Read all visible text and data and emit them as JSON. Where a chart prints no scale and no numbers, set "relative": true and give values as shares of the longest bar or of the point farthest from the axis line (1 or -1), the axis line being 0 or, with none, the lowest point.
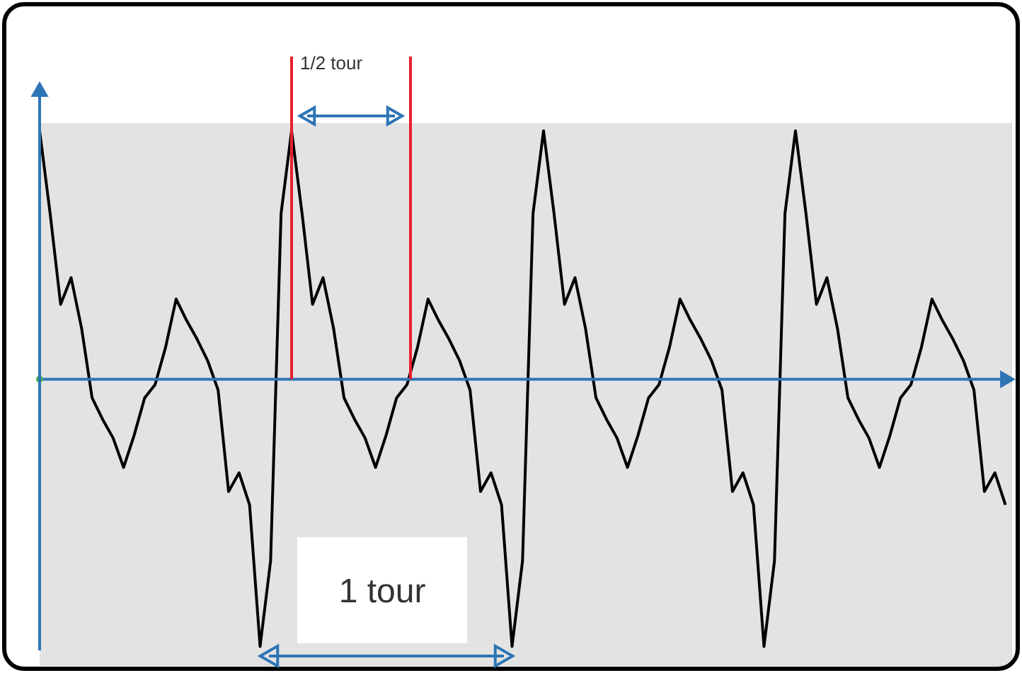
{
  "chart_data": {
    "type": "line",
    "relative": true,
    "categories": [
      null,
      null,
      null,
      null,
      null,
      null,
      null,
      null,
      null,
      null,
      null,
      null,
      null,
      null,
      null,
      null,
      null,
      null,
      null,
      null,
      null,
      null,
      null,
      null,
      null,
      null,
      null,
      null,
      null,
      null,
      null,
      null,
      null,
      null,
      null,
      null,
      null,
      null,
      null,
      null,
      null,
      null,
      null,
      null,
      null,
      null,
      null,
      null,
      null,
      null,
      null,
      null,
      null,
      null,
      null,
      null,
      null,
      null,
      null,
      null,
      null,
      null,
      null,
      null,
      null,
      null,
      null,
      null,
      null,
      null,
      null,
      null,
      null,
      null,
      null,
      null,
      null,
      null,
      null,
      null,
      null,
      null,
      null,
      null,
      null,
      null,
      null,
      null,
      null,
      null,
      null,
      null,
      null
    ],
    "series": [
      {
        "color": "#000000",
        "values": [
          0.93,
          0.62,
          0.28,
          0.38,
          0.19,
          -0.07,
          -0.15,
          -0.22,
          -0.33,
          -0.21,
          -0.07,
          -0.02,
          0.12,
          0.3,
          0.22,
          0.15,
          0.07,
          -0.04,
          -0.42,
          -0.35,
          -0.47,
          -1,
          -0.68,
          0.62,
          0.93,
          0.62,
          0.28,
          0.38,
          0.19,
          -0.07,
          -0.15,
          -0.22,
          -0.33,
          -0.21,
          -0.07,
          -0.02,
          0.12,
          0.3,
          0.22,
          0.15,
          0.07,
          -0.04,
          -0.42,
          -0.35,
          -0.47,
          -1,
          -0.68,
          0.62,
          0.93,
          0.62,
          0.28,
          0.38,
          0.19,
          -0.07,
          -0.15,
          -0.22,
          -0.33,
          -0.21,
          -0.07,
          -0.02,
          0.12,
          0.3,
          0.22,
          0.15,
          0.07,
          -0.04,
          -0.42,
          -0.35,
          -0.47,
          -1,
          -0.68,
          0.62,
          0.93,
          0.62,
          0.28,
          0.38,
          0.19,
          -0.07,
          -0.15,
          -0.22,
          -0.33,
          -0.21,
          -0.07,
          -0.02,
          0.12,
          0.3,
          0.22,
          0.15,
          0.07,
          -0.04,
          -0.42,
          -0.35,
          -0.47
        ]
      }
    ],
    "ref_lines": [
      {
        "axis": "y",
        "value": 0,
        "color": "#2e75b6"
      }
    ],
    "annotations": [
      "1/2 tour",
      "1 tour"
    ]
  }
}
